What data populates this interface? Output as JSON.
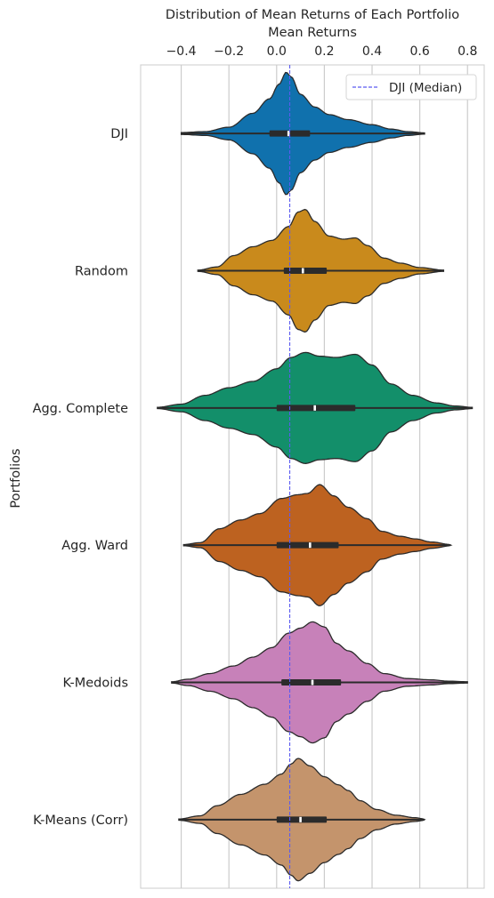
{
  "chart_data": {
    "type": "violin",
    "title": "Distribution of Mean Returns of Each Portfolio",
    "xlabel": "Mean Returns",
    "ylabel": "Portfolios",
    "xaxis_position": "top",
    "xlim": [
      -0.57,
      0.87
    ],
    "xticks": [
      -0.4,
      -0.2,
      0.0,
      0.2,
      0.4,
      0.6,
      0.8
    ],
    "xtick_labels": [
      "−0.4",
      "−0.2",
      "0.0",
      "0.2",
      "0.4",
      "0.6",
      "0.8"
    ],
    "grid": "vertical",
    "legend": {
      "position": "top-right",
      "entries": [
        "DJI (Median)"
      ]
    },
    "reference_line": {
      "label": "DJI (Median)",
      "x": 0.055,
      "color": "#5b5bf0",
      "style": "dashed"
    },
    "series": [
      {
        "name": "DJI",
        "color": "#1f77b4",
        "fill": "#1071ad",
        "box": {
          "min": -0.4,
          "q1": -0.03,
          "median": 0.05,
          "q3": 0.14,
          "max": 0.62
        },
        "profile": [
          [
            -0.4,
            0.015
          ],
          [
            -0.3,
            0.03
          ],
          [
            -0.2,
            0.1
          ],
          [
            -0.1,
            0.32
          ],
          [
            -0.03,
            0.55
          ],
          [
            0.01,
            0.78
          ],
          [
            0.04,
            0.97
          ],
          [
            0.06,
            0.9
          ],
          [
            0.1,
            0.62
          ],
          [
            0.16,
            0.42
          ],
          [
            0.22,
            0.3
          ],
          [
            0.3,
            0.22
          ],
          [
            0.4,
            0.14
          ],
          [
            0.48,
            0.07
          ],
          [
            0.55,
            0.03
          ],
          [
            0.62,
            0.01
          ]
        ]
      },
      {
        "name": "Random",
        "color": "#d08c15",
        "fill": "#c98a1c",
        "box": {
          "min": -0.33,
          "q1": 0.03,
          "median": 0.11,
          "q3": 0.21,
          "max": 0.7
        },
        "profile": [
          [
            -0.33,
            0.01
          ],
          [
            -0.25,
            0.06
          ],
          [
            -0.18,
            0.24
          ],
          [
            -0.1,
            0.38
          ],
          [
            -0.02,
            0.48
          ],
          [
            0.05,
            0.7
          ],
          [
            0.09,
            0.93
          ],
          [
            0.12,
            0.97
          ],
          [
            0.16,
            0.78
          ],
          [
            0.22,
            0.55
          ],
          [
            0.28,
            0.5
          ],
          [
            0.33,
            0.52
          ],
          [
            0.38,
            0.4
          ],
          [
            0.45,
            0.2
          ],
          [
            0.52,
            0.12
          ],
          [
            0.6,
            0.05
          ],
          [
            0.7,
            0.01
          ]
        ]
      },
      {
        "name": "Agg. Complete",
        "color": "#13906a",
        "fill": "#138f6a",
        "box": {
          "min": -0.5,
          "q1": 0.0,
          "median": 0.16,
          "q3": 0.33,
          "max": 0.82
        },
        "profile": [
          [
            -0.5,
            0.01
          ],
          [
            -0.4,
            0.06
          ],
          [
            -0.3,
            0.2
          ],
          [
            -0.2,
            0.32
          ],
          [
            -0.1,
            0.42
          ],
          [
            0.0,
            0.62
          ],
          [
            0.06,
            0.8
          ],
          [
            0.12,
            0.88
          ],
          [
            0.18,
            0.82
          ],
          [
            0.25,
            0.8
          ],
          [
            0.33,
            0.85
          ],
          [
            0.4,
            0.68
          ],
          [
            0.48,
            0.38
          ],
          [
            0.57,
            0.2
          ],
          [
            0.67,
            0.08
          ],
          [
            0.75,
            0.03
          ],
          [
            0.82,
            0.01
          ]
        ]
      },
      {
        "name": "Agg. Ward",
        "color": "#bd6220",
        "fill": "#bd6220",
        "box": {
          "min": -0.39,
          "q1": 0.0,
          "median": 0.14,
          "q3": 0.26,
          "max": 0.73
        },
        "profile": [
          [
            -0.39,
            0.01
          ],
          [
            -0.32,
            0.04
          ],
          [
            -0.24,
            0.26
          ],
          [
            -0.15,
            0.4
          ],
          [
            -0.07,
            0.5
          ],
          [
            0.02,
            0.74
          ],
          [
            0.09,
            0.8
          ],
          [
            0.13,
            0.82
          ],
          [
            0.18,
            0.96
          ],
          [
            0.24,
            0.78
          ],
          [
            0.3,
            0.6
          ],
          [
            0.38,
            0.42
          ],
          [
            0.44,
            0.22
          ],
          [
            0.52,
            0.14
          ],
          [
            0.58,
            0.1
          ],
          [
            0.65,
            0.05
          ],
          [
            0.73,
            0.01
          ]
        ]
      },
      {
        "name": "K-Medoids",
        "color": "#c781b9",
        "fill": "#c781b9",
        "box": {
          "min": -0.44,
          "q1": 0.02,
          "median": 0.15,
          "q3": 0.27,
          "max": 0.8
        },
        "profile": [
          [
            -0.44,
            0.01
          ],
          [
            -0.37,
            0.05
          ],
          [
            -0.28,
            0.14
          ],
          [
            -0.18,
            0.26
          ],
          [
            -0.1,
            0.4
          ],
          [
            -0.02,
            0.55
          ],
          [
            0.05,
            0.78
          ],
          [
            0.1,
            0.86
          ],
          [
            0.15,
            0.96
          ],
          [
            0.2,
            0.88
          ],
          [
            0.25,
            0.62
          ],
          [
            0.3,
            0.5
          ],
          [
            0.38,
            0.3
          ],
          [
            0.45,
            0.14
          ],
          [
            0.55,
            0.06
          ],
          [
            0.65,
            0.04
          ],
          [
            0.72,
            0.02
          ],
          [
            0.8,
            0.01
          ]
        ]
      },
      {
        "name": "K-Means (Corr)",
        "color": "#c4946c",
        "fill": "#c4946c",
        "box": {
          "min": -0.41,
          "q1": 0.0,
          "median": 0.1,
          "q3": 0.21,
          "max": 0.62
        },
        "profile": [
          [
            -0.41,
            0.01
          ],
          [
            -0.32,
            0.06
          ],
          [
            -0.25,
            0.22
          ],
          [
            -0.15,
            0.4
          ],
          [
            -0.05,
            0.56
          ],
          [
            0.02,
            0.72
          ],
          [
            0.06,
            0.88
          ],
          [
            0.09,
            0.97
          ],
          [
            0.14,
            0.85
          ],
          [
            0.2,
            0.68
          ],
          [
            0.26,
            0.55
          ],
          [
            0.3,
            0.46
          ],
          [
            0.35,
            0.3
          ],
          [
            0.42,
            0.16
          ],
          [
            0.5,
            0.07
          ],
          [
            0.58,
            0.03
          ],
          [
            0.62,
            0.01
          ]
        ]
      }
    ]
  }
}
